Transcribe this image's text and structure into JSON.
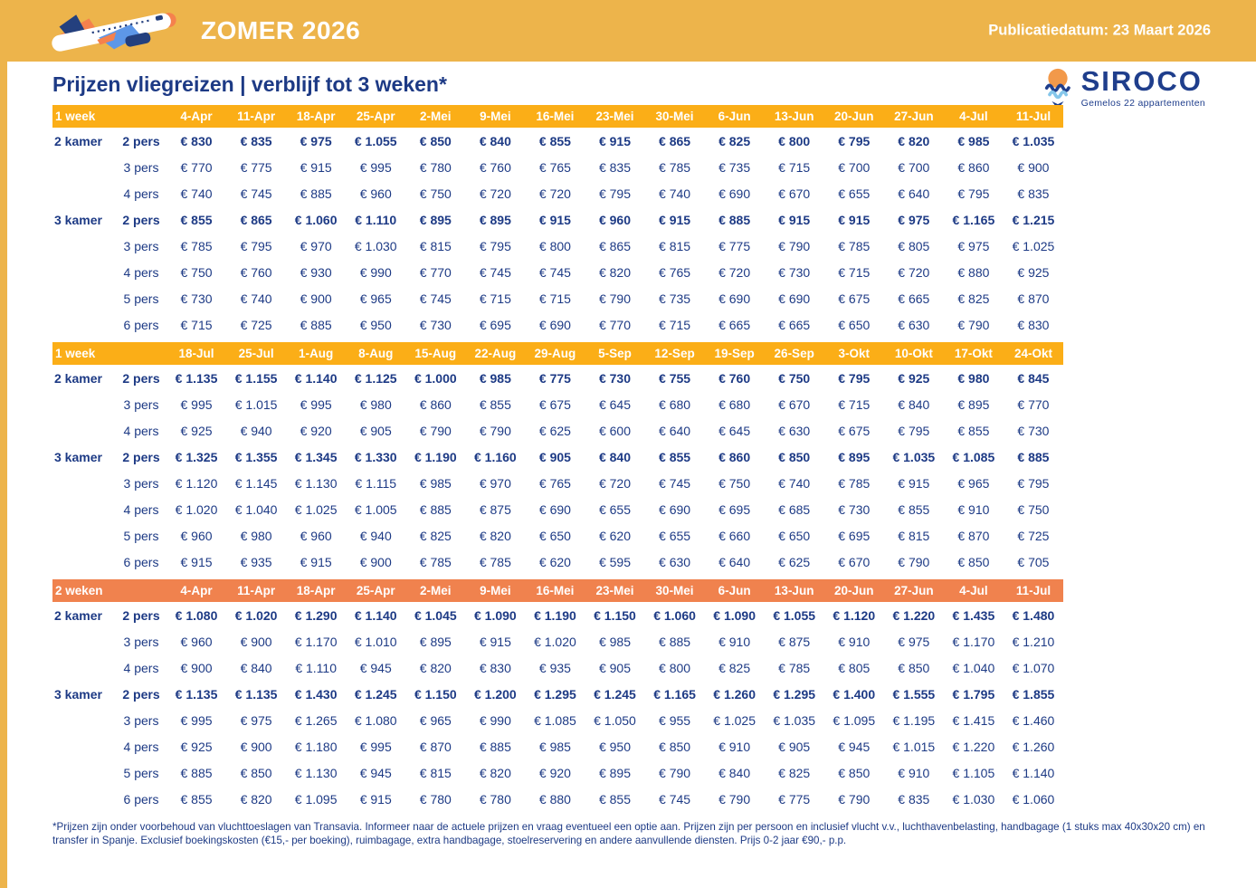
{
  "banner": {
    "title": "ZOMER 2026",
    "publication_date": "Publicatiedatum: 23 Maart 2026"
  },
  "heading": "Prijzen vliegreizen | verblijf tot 3 weken*",
  "logo": {
    "name": "SIROCO",
    "subtitle": "Gemelos 22 appartementen"
  },
  "colors": {
    "banner_yellow": "#EDB44B",
    "table_header_yellow": "#FBAE17",
    "table_header_orange": "#F0824E",
    "navy": "#1D3A85",
    "white": "#FFFFFF"
  },
  "footnote": "*Prijzen zijn onder voorbehoud van vluchttoeslagen van Transavia. Informeer naar de actuele prijzen en vraag eventueel een optie aan. Prijzen zijn per persoon en inclusief vlucht v.v., luchthavenbelasting, handbagage (1 stuks max 40x30x20 cm) en transfer in Spanje. Exclusief boekingskosten (€15,- per boeking), ruimbagage, extra handbagage, stoelreservering en andere aanvullende diensten. Prijs 0-2 jaar €90,- p.p.",
  "table": {
    "sections": [
      {
        "label": "1 week",
        "theme": "yellow",
        "dates": [
          "4-Apr",
          "11-Apr",
          "18-Apr",
          "25-Apr",
          "2-Mei",
          "9-Mei",
          "16-Mei",
          "23-Mei",
          "30-Mei",
          "6-Jun",
          "13-Jun",
          "20-Jun",
          "27-Jun",
          "4-Jul",
          "11-Jul"
        ],
        "groups": [
          {
            "kamer": "2 kamer",
            "rows": [
              {
                "pers": "2 pers",
                "bold": true,
                "values": [
                  "€ 830",
                  "€ 835",
                  "€ 975",
                  "€ 1.055",
                  "€ 850",
                  "€ 840",
                  "€ 855",
                  "€ 915",
                  "€ 865",
                  "€ 825",
                  "€ 800",
                  "€ 795",
                  "€ 820",
                  "€ 985",
                  "€ 1.035"
                ]
              },
              {
                "pers": "3 pers",
                "bold": false,
                "values": [
                  "€ 770",
                  "€ 775",
                  "€ 915",
                  "€ 995",
                  "€ 780",
                  "€ 760",
                  "€ 765",
                  "€ 835",
                  "€ 785",
                  "€ 735",
                  "€ 715",
                  "€ 700",
                  "€ 700",
                  "€ 860",
                  "€ 900"
                ]
              },
              {
                "pers": "4 pers",
                "bold": false,
                "values": [
                  "€ 740",
                  "€ 745",
                  "€ 885",
                  "€ 960",
                  "€ 750",
                  "€ 720",
                  "€ 720",
                  "€ 795",
                  "€ 740",
                  "€ 690",
                  "€ 670",
                  "€ 655",
                  "€ 640",
                  "€ 795",
                  "€ 835"
                ]
              }
            ]
          },
          {
            "kamer": "3 kamer",
            "rows": [
              {
                "pers": "2 pers",
                "bold": true,
                "values": [
                  "€ 855",
                  "€ 865",
                  "€ 1.060",
                  "€ 1.110",
                  "€ 895",
                  "€ 895",
                  "€ 915",
                  "€ 960",
                  "€ 915",
                  "€ 885",
                  "€ 915",
                  "€ 915",
                  "€ 975",
                  "€ 1.165",
                  "€ 1.215"
                ]
              },
              {
                "pers": "3 pers",
                "bold": false,
                "values": [
                  "€ 785",
                  "€ 795",
                  "€ 970",
                  "€ 1.030",
                  "€ 815",
                  "€ 795",
                  "€ 800",
                  "€ 865",
                  "€ 815",
                  "€ 775",
                  "€ 790",
                  "€ 785",
                  "€ 805",
                  "€ 975",
                  "€ 1.025"
                ]
              },
              {
                "pers": "4 pers",
                "bold": false,
                "values": [
                  "€ 750",
                  "€ 760",
                  "€ 930",
                  "€ 990",
                  "€ 770",
                  "€ 745",
                  "€ 745",
                  "€ 820",
                  "€ 765",
                  "€ 720",
                  "€ 730",
                  "€ 715",
                  "€ 720",
                  "€ 880",
                  "€ 925"
                ]
              },
              {
                "pers": "5 pers",
                "bold": false,
                "values": [
                  "€ 730",
                  "€ 740",
                  "€ 900",
                  "€ 965",
                  "€ 745",
                  "€ 715",
                  "€ 715",
                  "€ 790",
                  "€ 735",
                  "€ 690",
                  "€ 690",
                  "€ 675",
                  "€ 665",
                  "€ 825",
                  "€ 870"
                ]
              },
              {
                "pers": "6 pers",
                "bold": false,
                "values": [
                  "€ 715",
                  "€ 725",
                  "€ 885",
                  "€ 950",
                  "€ 730",
                  "€ 695",
                  "€ 690",
                  "€ 770",
                  "€ 715",
                  "€ 665",
                  "€ 665",
                  "€ 650",
                  "€ 630",
                  "€ 790",
                  "€ 830"
                ]
              }
            ]
          }
        ]
      },
      {
        "label": "1 week",
        "theme": "yellow",
        "dates": [
          "18-Jul",
          "25-Jul",
          "1-Aug",
          "8-Aug",
          "15-Aug",
          "22-Aug",
          "29-Aug",
          "5-Sep",
          "12-Sep",
          "19-Sep",
          "26-Sep",
          "3-Okt",
          "10-Okt",
          "17-Okt",
          "24-Okt"
        ],
        "groups": [
          {
            "kamer": "2 kamer",
            "rows": [
              {
                "pers": "2 pers",
                "bold": true,
                "values": [
                  "€ 1.135",
                  "€ 1.155",
                  "€ 1.140",
                  "€ 1.125",
                  "€ 1.000",
                  "€ 985",
                  "€ 775",
                  "€ 730",
                  "€ 755",
                  "€ 760",
                  "€ 750",
                  "€ 795",
                  "€ 925",
                  "€ 980",
                  "€ 845"
                ]
              },
              {
                "pers": "3 pers",
                "bold": false,
                "values": [
                  "€ 995",
                  "€ 1.015",
                  "€ 995",
                  "€ 980",
                  "€ 860",
                  "€ 855",
                  "€ 675",
                  "€ 645",
                  "€ 680",
                  "€ 680",
                  "€ 670",
                  "€ 715",
                  "€ 840",
                  "€ 895",
                  "€ 770"
                ]
              },
              {
                "pers": "4 pers",
                "bold": false,
                "values": [
                  "€ 925",
                  "€ 940",
                  "€ 920",
                  "€ 905",
                  "€ 790",
                  "€ 790",
                  "€ 625",
                  "€ 600",
                  "€ 640",
                  "€ 645",
                  "€ 630",
                  "€ 675",
                  "€ 795",
                  "€ 855",
                  "€ 730"
                ]
              }
            ]
          },
          {
            "kamer": "3 kamer",
            "rows": [
              {
                "pers": "2 pers",
                "bold": true,
                "values": [
                  "€ 1.325",
                  "€ 1.355",
                  "€ 1.345",
                  "€ 1.330",
                  "€ 1.190",
                  "€ 1.160",
                  "€ 905",
                  "€ 840",
                  "€ 855",
                  "€ 860",
                  "€ 850",
                  "€ 895",
                  "€ 1.035",
                  "€ 1.085",
                  "€ 885"
                ]
              },
              {
                "pers": "3 pers",
                "bold": false,
                "values": [
                  "€ 1.120",
                  "€ 1.145",
                  "€ 1.130",
                  "€ 1.115",
                  "€ 985",
                  "€ 970",
                  "€ 765",
                  "€ 720",
                  "€ 745",
                  "€ 750",
                  "€ 740",
                  "€ 785",
                  "€ 915",
                  "€ 965",
                  "€ 795"
                ]
              },
              {
                "pers": "4 pers",
                "bold": false,
                "values": [
                  "€ 1.020",
                  "€ 1.040",
                  "€ 1.025",
                  "€ 1.005",
                  "€ 885",
                  "€ 875",
                  "€ 690",
                  "€ 655",
                  "€ 690",
                  "€ 695",
                  "€ 685",
                  "€ 730",
                  "€ 855",
                  "€ 910",
                  "€ 750"
                ]
              },
              {
                "pers": "5 pers",
                "bold": false,
                "values": [
                  "€ 960",
                  "€ 980",
                  "€ 960",
                  "€ 940",
                  "€ 825",
                  "€ 820",
                  "€ 650",
                  "€ 620",
                  "€ 655",
                  "€ 660",
                  "€ 650",
                  "€ 695",
                  "€ 815",
                  "€ 870",
                  "€ 725"
                ]
              },
              {
                "pers": "6 pers",
                "bold": false,
                "values": [
                  "€ 915",
                  "€ 935",
                  "€ 915",
                  "€ 900",
                  "€ 785",
                  "€ 785",
                  "€ 620",
                  "€ 595",
                  "€ 630",
                  "€ 640",
                  "€ 625",
                  "€ 670",
                  "€ 790",
                  "€ 850",
                  "€ 705"
                ]
              }
            ]
          }
        ]
      },
      {
        "label": "2 weken",
        "theme": "orange",
        "dates": [
          "4-Apr",
          "11-Apr",
          "18-Apr",
          "25-Apr",
          "2-Mei",
          "9-Mei",
          "16-Mei",
          "23-Mei",
          "30-Mei",
          "6-Jun",
          "13-Jun",
          "20-Jun",
          "27-Jun",
          "4-Jul",
          "11-Jul"
        ],
        "groups": [
          {
            "kamer": "2 kamer",
            "rows": [
              {
                "pers": "2 pers",
                "bold": true,
                "values": [
                  "€ 1.080",
                  "€ 1.020",
                  "€ 1.290",
                  "€ 1.140",
                  "€ 1.045",
                  "€ 1.090",
                  "€ 1.190",
                  "€ 1.150",
                  "€ 1.060",
                  "€ 1.090",
                  "€ 1.055",
                  "€ 1.120",
                  "€ 1.220",
                  "€ 1.435",
                  "€ 1.480"
                ]
              },
              {
                "pers": "3 pers",
                "bold": false,
                "values": [
                  "€ 960",
                  "€ 900",
                  "€ 1.170",
                  "€ 1.010",
                  "€ 895",
                  "€ 915",
                  "€ 1.020",
                  "€ 985",
                  "€ 885",
                  "€ 910",
                  "€ 875",
                  "€ 910",
                  "€ 975",
                  "€ 1.170",
                  "€ 1.210"
                ]
              },
              {
                "pers": "4 pers",
                "bold": false,
                "values": [
                  "€ 900",
                  "€ 840",
                  "€ 1.110",
                  "€ 945",
                  "€ 820",
                  "€ 830",
                  "€ 935",
                  "€ 905",
                  "€ 800",
                  "€ 825",
                  "€ 785",
                  "€ 805",
                  "€ 850",
                  "€ 1.040",
                  "€ 1.070"
                ]
              }
            ]
          },
          {
            "kamer": "3 kamer",
            "rows": [
              {
                "pers": "2 pers",
                "bold": true,
                "values": [
                  "€ 1.135",
                  "€ 1.135",
                  "€ 1.430",
                  "€ 1.245",
                  "€ 1.150",
                  "€ 1.200",
                  "€ 1.295",
                  "€ 1.245",
                  "€ 1.165",
                  "€ 1.260",
                  "€ 1.295",
                  "€ 1.400",
                  "€ 1.555",
                  "€ 1.795",
                  "€ 1.855"
                ]
              },
              {
                "pers": "3 pers",
                "bold": false,
                "values": [
                  "€ 995",
                  "€ 975",
                  "€ 1.265",
                  "€ 1.080",
                  "€ 965",
                  "€ 990",
                  "€ 1.085",
                  "€ 1.050",
                  "€ 955",
                  "€ 1.025",
                  "€ 1.035",
                  "€ 1.095",
                  "€ 1.195",
                  "€ 1.415",
                  "€ 1.460"
                ]
              },
              {
                "pers": "4 pers",
                "bold": false,
                "values": [
                  "€ 925",
                  "€ 900",
                  "€ 1.180",
                  "€ 995",
                  "€ 870",
                  "€ 885",
                  "€ 985",
                  "€ 950",
                  "€ 850",
                  "€ 910",
                  "€ 905",
                  "€ 945",
                  "€ 1.015",
                  "€ 1.220",
                  "€ 1.260"
                ]
              },
              {
                "pers": "5 pers",
                "bold": false,
                "values": [
                  "€ 885",
                  "€ 850",
                  "€ 1.130",
                  "€ 945",
                  "€ 815",
                  "€ 820",
                  "€ 920",
                  "€ 895",
                  "€ 790",
                  "€ 840",
                  "€ 825",
                  "€ 850",
                  "€ 910",
                  "€ 1.105",
                  "€ 1.140"
                ]
              },
              {
                "pers": "6 pers",
                "bold": false,
                "values": [
                  "€ 855",
                  "€ 820",
                  "€ 1.095",
                  "€ 915",
                  "€ 780",
                  "€ 780",
                  "€ 880",
                  "€ 855",
                  "€ 745",
                  "€ 790",
                  "€ 775",
                  "€ 790",
                  "€ 835",
                  "€ 1.030",
                  "€ 1.060"
                ]
              }
            ]
          }
        ]
      }
    ]
  }
}
